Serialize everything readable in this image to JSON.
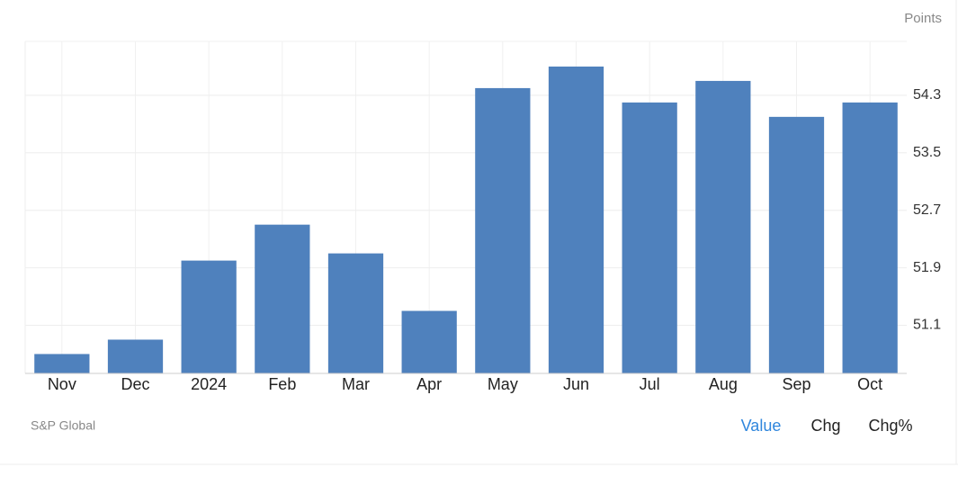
{
  "chart_data": {
    "type": "bar",
    "y_label": "Points",
    "source": "S&P Global",
    "categories": [
      "Nov",
      "Dec",
      "2024",
      "Feb",
      "Mar",
      "Apr",
      "May",
      "Jun",
      "Jul",
      "Aug",
      "Sep",
      "Oct"
    ],
    "values": [
      50.7,
      50.9,
      52.0,
      52.5,
      52.1,
      51.3,
      54.4,
      54.7,
      54.2,
      54.5,
      54.0,
      54.2
    ],
    "color": "#4f81bd",
    "ylim": [
      50.43,
      55.05
    ],
    "yticks": [
      51.1,
      51.9,
      52.7,
      53.5,
      54.3
    ],
    "grid": true
  },
  "controls": [
    "Value",
    "Chg",
    "Chg%"
  ]
}
